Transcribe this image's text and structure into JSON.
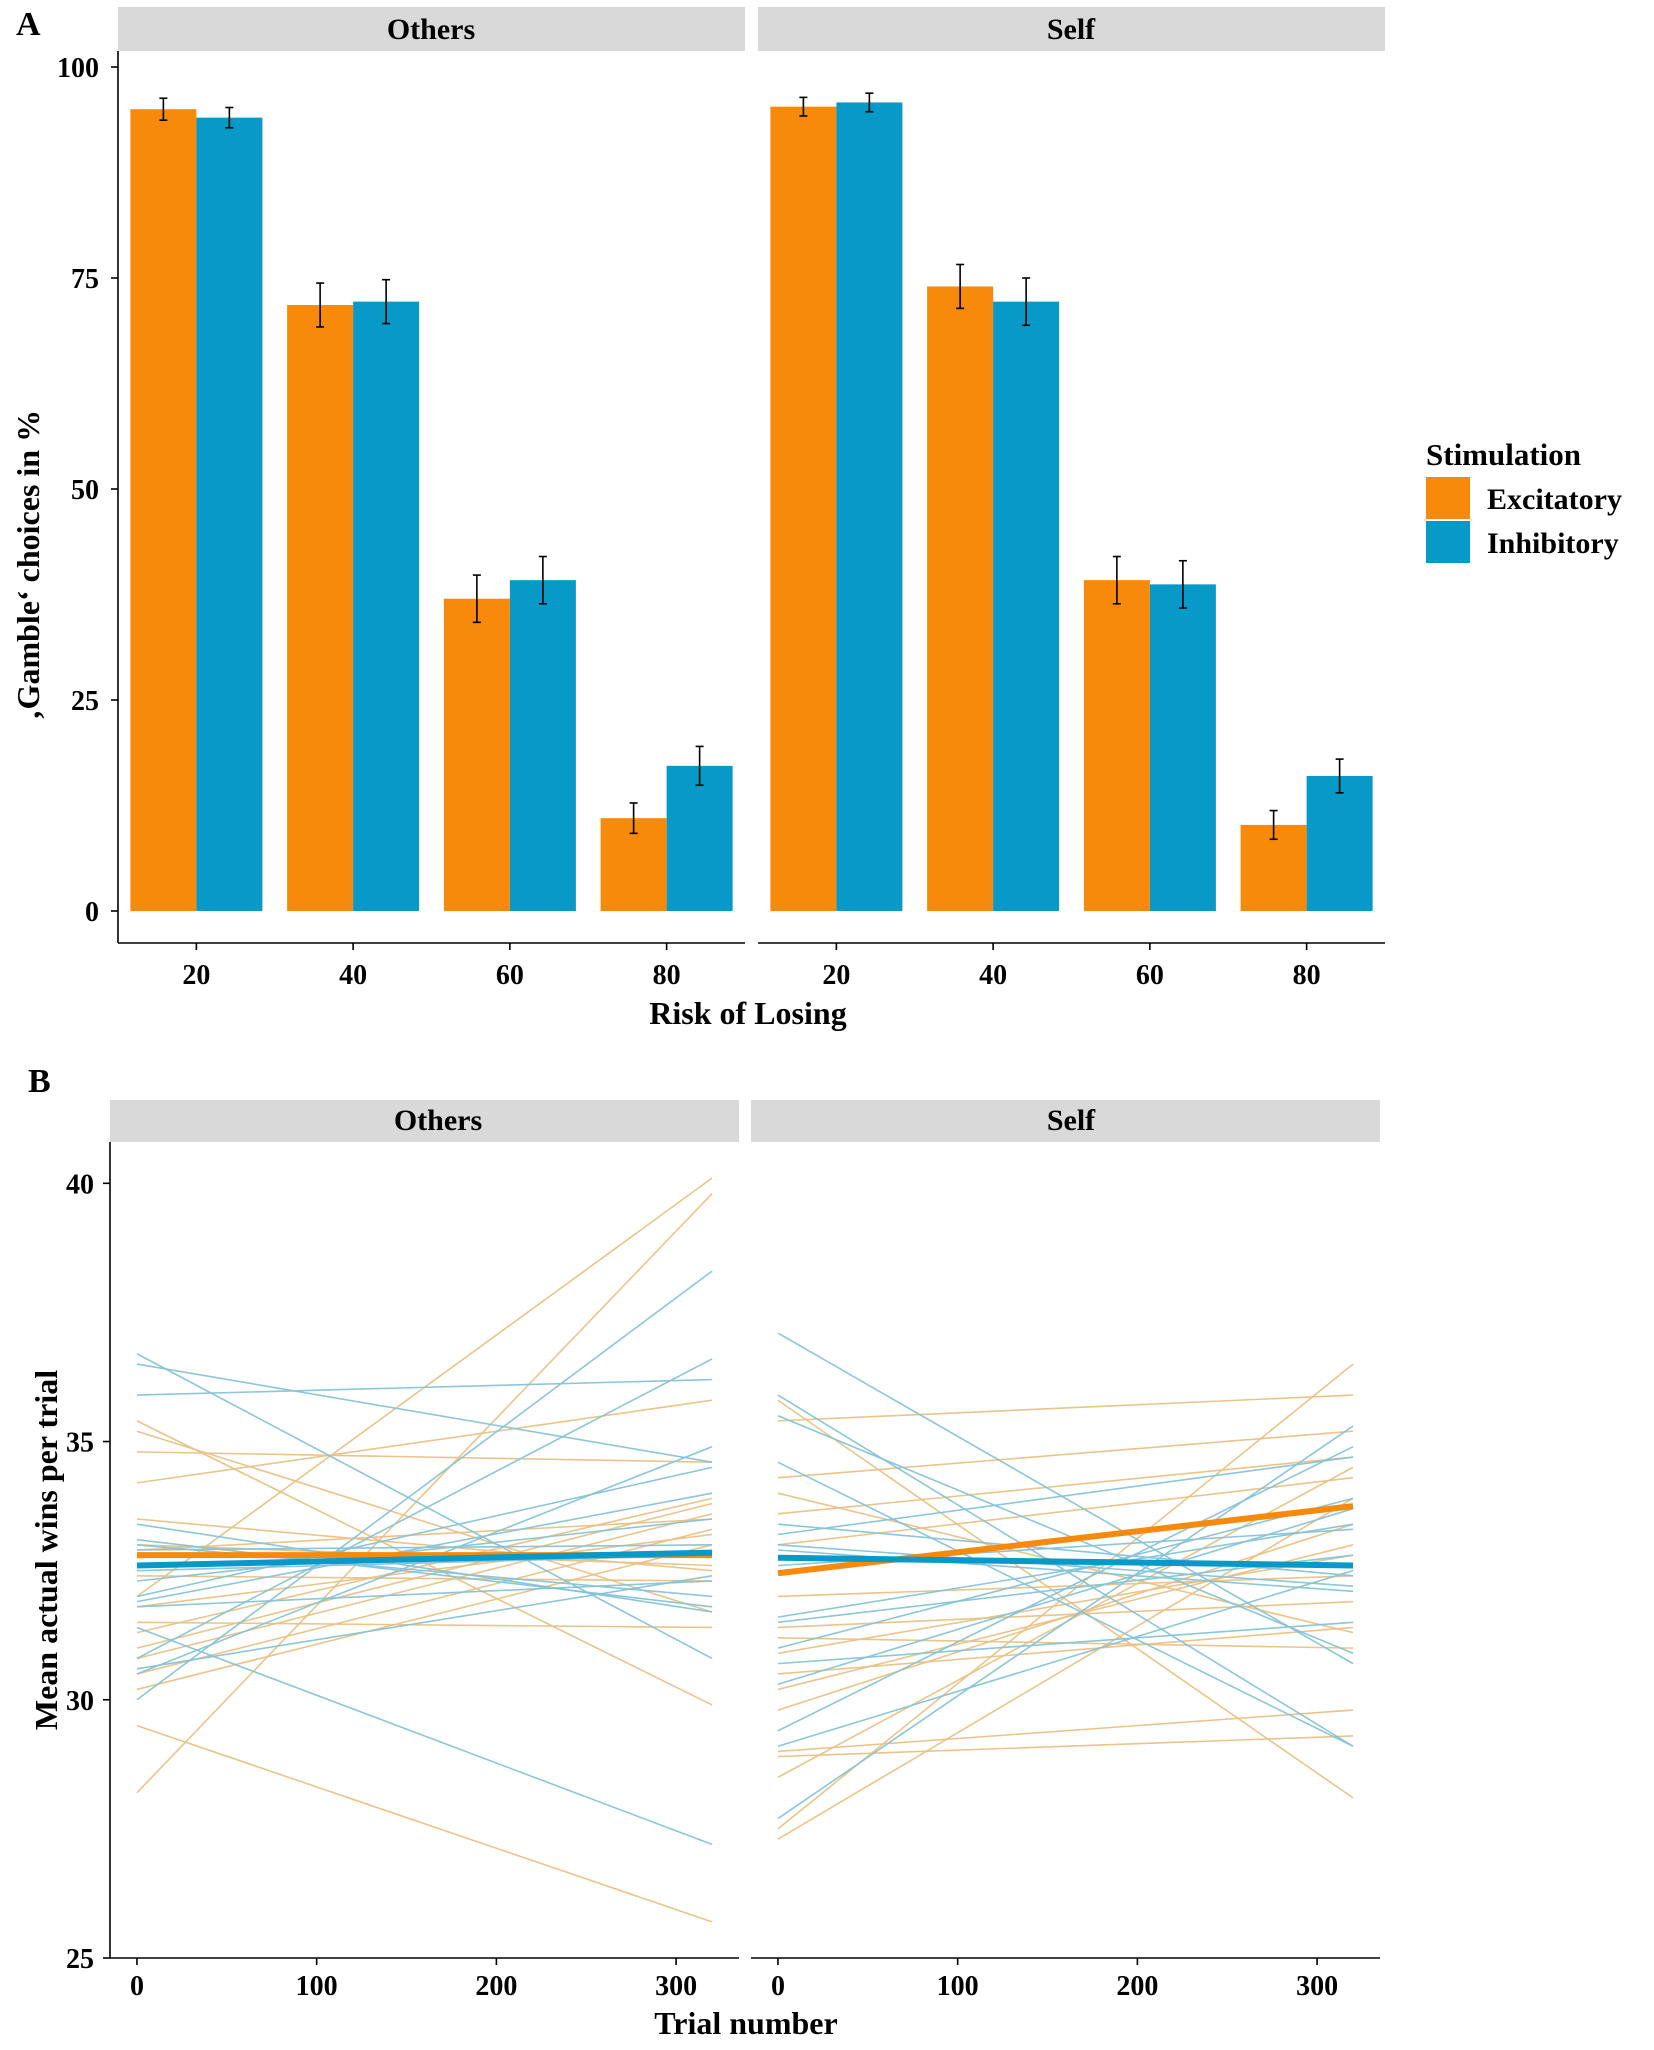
{
  "colors": {
    "excitatory": "#F7890B",
    "inhibitory": "#0799C8",
    "strip": "#D9D9D9",
    "excitatory_thin": "#E9C184",
    "inhibitory_thin": "#86C3D6"
  },
  "panels": {
    "a_label": "A",
    "b_label": "B"
  },
  "legend": {
    "title": "Stimulation",
    "items": [
      "Excitatory",
      "Inhibitory"
    ]
  },
  "chart_data": [
    {
      "type": "bar",
      "panel": "A",
      "facets": [
        "Others",
        "Self"
      ],
      "categories": [
        "20",
        "40",
        "60",
        "80"
      ],
      "xlabel": "Risk of Losing",
      "ylabel": "‚Gamble‘ choices in %",
      "ylim": [
        0,
        100
      ],
      "yticks": [
        0,
        25,
        50,
        75,
        100
      ],
      "series": [
        {
          "name": "Excitatory",
          "facet": "Others",
          "values": [
            95.0,
            71.8,
            37.0,
            11.0
          ],
          "errors": [
            1.3,
            2.6,
            2.8,
            1.8
          ]
        },
        {
          "name": "Inhibitory",
          "facet": "Others",
          "values": [
            94.0,
            72.2,
            39.2,
            17.2
          ],
          "errors": [
            1.2,
            2.6,
            2.8,
            2.3
          ]
        },
        {
          "name": "Excitatory",
          "facet": "Self",
          "values": [
            95.3,
            74.0,
            39.2,
            10.2
          ],
          "errors": [
            1.1,
            2.6,
            2.8,
            1.7
          ]
        },
        {
          "name": "Inhibitory",
          "facet": "Self",
          "values": [
            95.8,
            72.2,
            38.7,
            16.0
          ],
          "errors": [
            1.1,
            2.8,
            2.8,
            2.0
          ]
        }
      ]
    },
    {
      "type": "line",
      "panel": "B",
      "facets": [
        "Others",
        "Self"
      ],
      "xlabel": "Trial number",
      "ylabel": "Mean actual wins per trial",
      "xlim": [
        -15,
        335
      ],
      "ylim": [
        25,
        40.8
      ],
      "xticks": [
        0,
        100,
        200,
        300
      ],
      "yticks": [
        25,
        30,
        35,
        40
      ],
      "x_range": [
        0,
        320
      ],
      "series": [
        {
          "name": "Excitatory",
          "facet": "Others",
          "kind": "mean",
          "start": 32.8,
          "end": 32.8
        },
        {
          "name": "Inhibitory",
          "facet": "Others",
          "kind": "mean",
          "start": 32.6,
          "end": 32.85
        },
        {
          "name": "Excitatory",
          "facet": "Self",
          "kind": "mean",
          "start": 32.45,
          "end": 33.75
        },
        {
          "name": "Inhibitory",
          "facet": "Self",
          "kind": "mean",
          "start": 32.75,
          "end": 32.6
        },
        {
          "name": "Excitatory",
          "facet": "Others",
          "kind": "subject",
          "lines": [
            [
              28.2,
              39.8
            ],
            [
              29.5,
              25.7
            ],
            [
              35.2,
              31.7
            ],
            [
              35.4,
              29.9
            ],
            [
              34.2,
              35.8
            ],
            [
              32.0,
              40.1
            ],
            [
              31.0,
              33.8
            ],
            [
              30.5,
              33.3
            ],
            [
              30.2,
              33.0
            ],
            [
              31.5,
              31.4
            ],
            [
              32.9,
              33.5
            ],
            [
              33.0,
              32.6
            ],
            [
              34.8,
              34.6
            ],
            [
              31.8,
              33.2
            ],
            [
              30.8,
              33.6
            ],
            [
              33.5,
              32.5
            ],
            [
              31.3,
              33.9
            ],
            [
              32.4,
              32.3
            ]
          ]
        },
        {
          "name": "Inhibitory",
          "facet": "Others",
          "kind": "subject",
          "lines": [
            [
              36.7,
              30.8
            ],
            [
              36.5,
              34.6
            ],
            [
              35.9,
              36.2
            ],
            [
              30.0,
              38.3
            ],
            [
              31.4,
              27.2
            ],
            [
              33.1,
              31.8
            ],
            [
              32.0,
              34.5
            ],
            [
              30.8,
              36.6
            ],
            [
              31.8,
              32.3
            ],
            [
              32.9,
              33.0
            ],
            [
              33.0,
              32.0
            ],
            [
              30.5,
              34.9
            ],
            [
              32.3,
              33.5
            ],
            [
              33.4,
              31.7
            ],
            [
              31.9,
              34.0
            ],
            [
              32.5,
              32.8
            ],
            [
              30.6,
              32.4
            ]
          ]
        },
        {
          "name": "Excitatory",
          "facet": "Self",
          "kind": "subject",
          "lines": [
            [
              27.3,
              33.9
            ],
            [
              27.5,
              36.5
            ],
            [
              28.9,
              29.3
            ],
            [
              29.0,
              29.8
            ],
            [
              33.6,
              34.7
            ],
            [
              35.4,
              35.9
            ],
            [
              35.8,
              28.1
            ],
            [
              34.3,
              35.2
            ],
            [
              30.9,
              32.8
            ],
            [
              32.0,
              32.4
            ],
            [
              31.4,
              31.9
            ],
            [
              30.2,
              33.0
            ],
            [
              33.0,
              34.3
            ],
            [
              28.5,
              34.5
            ],
            [
              34.0,
              31.3
            ],
            [
              31.2,
              31.0
            ],
            [
              29.8,
              33.4
            ],
            [
              30.5,
              31.4
            ]
          ]
        },
        {
          "name": "Inhibitory",
          "facet": "Self",
          "kind": "subject",
          "lines": [
            [
              37.1,
              30.7
            ],
            [
              35.9,
              29.1
            ],
            [
              35.5,
              30.9
            ],
            [
              27.7,
              35.3
            ],
            [
              29.4,
              34.9
            ],
            [
              30.3,
              33.7
            ],
            [
              33.0,
              32.2
            ],
            [
              33.2,
              34.7
            ],
            [
              34.6,
              29.1
            ],
            [
              31.6,
              33.4
            ],
            [
              29.1,
              32.5
            ],
            [
              31.5,
              32.8
            ],
            [
              32.9,
              32.1
            ],
            [
              30.7,
              31.5
            ],
            [
              32.6,
              33.3
            ],
            [
              31.0,
              33.9
            ],
            [
              33.4,
              32.4
            ]
          ]
        }
      ]
    }
  ]
}
